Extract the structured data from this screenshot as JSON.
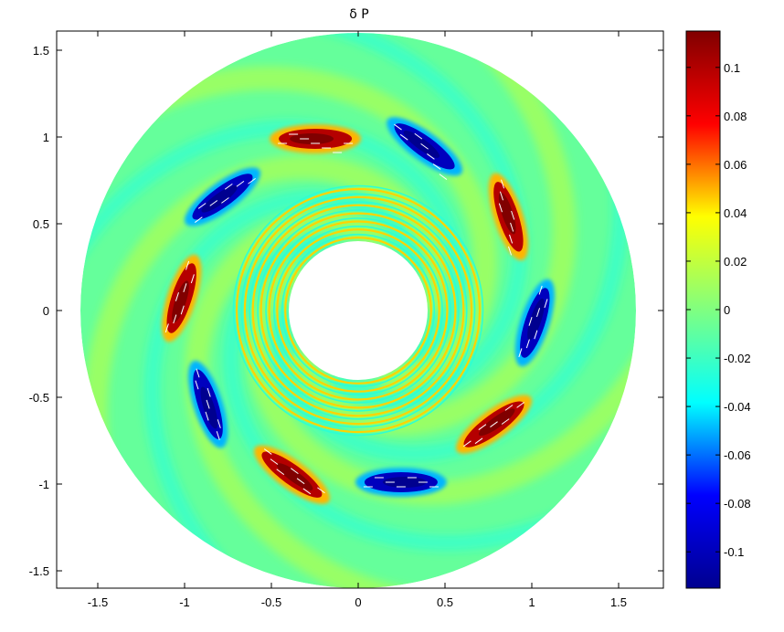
{
  "chart_data": [
    {
      "type": "heatmap",
      "subtype": "polar-annulus",
      "title": "δ P",
      "xlabel": "",
      "ylabel": "",
      "xlim": [
        -1.72,
        1.72
      ],
      "ylim": [
        -1.6,
        1.6
      ],
      "x_ticks": [
        -1.5,
        -1,
        -0.5,
        0,
        0.5,
        1,
        1.5
      ],
      "y_ticks": [
        -1.5,
        -1,
        -0.5,
        0,
        0.5,
        1,
        1.5
      ],
      "x_tick_labels": [
        "-1.5",
        "-1",
        "-0.5",
        "0",
        "0.5",
        "1",
        "1.5"
      ],
      "y_tick_labels": [
        "-1.5",
        "-1",
        "-0.5",
        "0",
        "0.5",
        "1",
        "1.5"
      ],
      "grid": false,
      "annulus": {
        "inner_radius": 0.4,
        "outer_radius": 1.6,
        "background_value": 0.0
      },
      "pressure_lobes": {
        "radius": 1.02,
        "sign_pattern": "alternating",
        "peak_value": 0.11,
        "trough_value": -0.11,
        "lobes": [
          {
            "angle_deg": 104,
            "value": 0.11
          },
          {
            "angle_deg": 68,
            "value": -0.11
          },
          {
            "angle_deg": 32,
            "value": 0.11
          },
          {
            "angle_deg": -4,
            "value": -0.11
          },
          {
            "angle_deg": -40,
            "value": 0.11
          },
          {
            "angle_deg": -76,
            "value": -0.11
          },
          {
            "angle_deg": -112,
            "value": 0.11
          },
          {
            "angle_deg": -148,
            "value": -0.11
          },
          {
            "angle_deg": 176,
            "value": 0.11
          },
          {
            "angle_deg": 140,
            "value": -0.11
          }
        ]
      },
      "spiral_arms": {
        "count": 5,
        "value": 0.02,
        "trough_value": -0.03
      },
      "inner_rings": {
        "count": 7,
        "r_min": 0.42,
        "r_max": 0.7
      },
      "velocity_arrows": {
        "color": "#ffffff",
        "along_ring_radius": 1.02
      }
    },
    {
      "type": "colorbar",
      "clim": [
        -0.115,
        0.115
      ],
      "colormap": "jet",
      "ticks": [
        0.1,
        0.08,
        0.06,
        0.04,
        0.02,
        0,
        -0.02,
        -0.04,
        -0.06,
        -0.08,
        -0.1
      ],
      "tick_labels": [
        "0.1",
        "0.08",
        "0.06",
        "0.04",
        "0.02",
        "0",
        "-0.02",
        "-0.04",
        "-0.06",
        "-0.08",
        "-0.1"
      ]
    }
  ],
  "colors": {
    "background": "#ffffff",
    "axis": "#000000",
    "arrows": "#ffffff",
    "jet_stops": [
      "#00008f",
      "#0000ff",
      "#00ffff",
      "#80ff80",
      "#ffff00",
      "#ff0000",
      "#800000"
    ]
  }
}
